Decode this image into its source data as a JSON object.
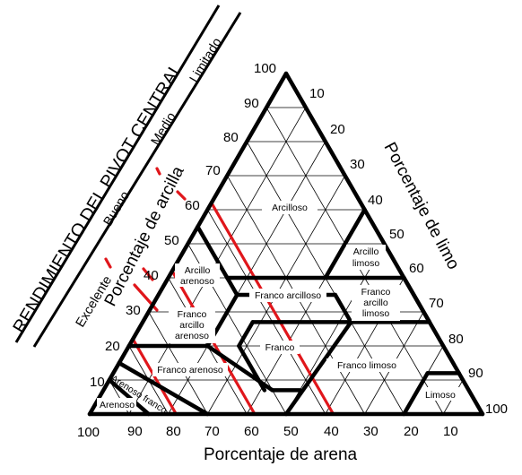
{
  "header": {
    "title": "RENDIMIENTO DEL PIVOT CENTRAL",
    "levels": [
      "Excelente",
      "Bueno",
      "Medio",
      "Limitado"
    ]
  },
  "axes": {
    "clay_label": "Porcentaje de arcilla",
    "silt_label": "Porcentaje de limo",
    "sand_label": "Porcentaje de arena",
    "clay_ticks": [
      "10",
      "20",
      "30",
      "40",
      "50",
      "60",
      "70",
      "80",
      "90",
      "100"
    ],
    "silt_ticks": [
      "10",
      "20",
      "30",
      "40",
      "50",
      "60",
      "70",
      "80",
      "90",
      "100"
    ],
    "sand_ticks": [
      "100",
      "90",
      "80",
      "70",
      "60",
      "50",
      "40",
      "30",
      "20",
      "10"
    ]
  },
  "zones": {
    "arcilloso": "Arcilloso",
    "arcillo_limoso": [
      "Arcillo",
      "limoso"
    ],
    "arcillo_arenoso": [
      "Arcillo",
      "arenoso"
    ],
    "franco_arcilloso": "Franco arcilloso",
    "franco_arcillo_limoso": [
      "Franco",
      "arcillo",
      "limoso"
    ],
    "franco_arcillo_arenoso": [
      "Franco",
      "arcillo",
      "arenoso"
    ],
    "franco": "Franco",
    "franco_arenoso": "Franco arenoso",
    "franco_limoso": "Franco limoso",
    "arenoso_franco": "Arenoso franco",
    "arenoso": "Arenoso",
    "limoso": "Limoso"
  },
  "colors": {
    "boundary": "#000000",
    "grid": "#000000",
    "performance_line": "#e0161b"
  }
}
